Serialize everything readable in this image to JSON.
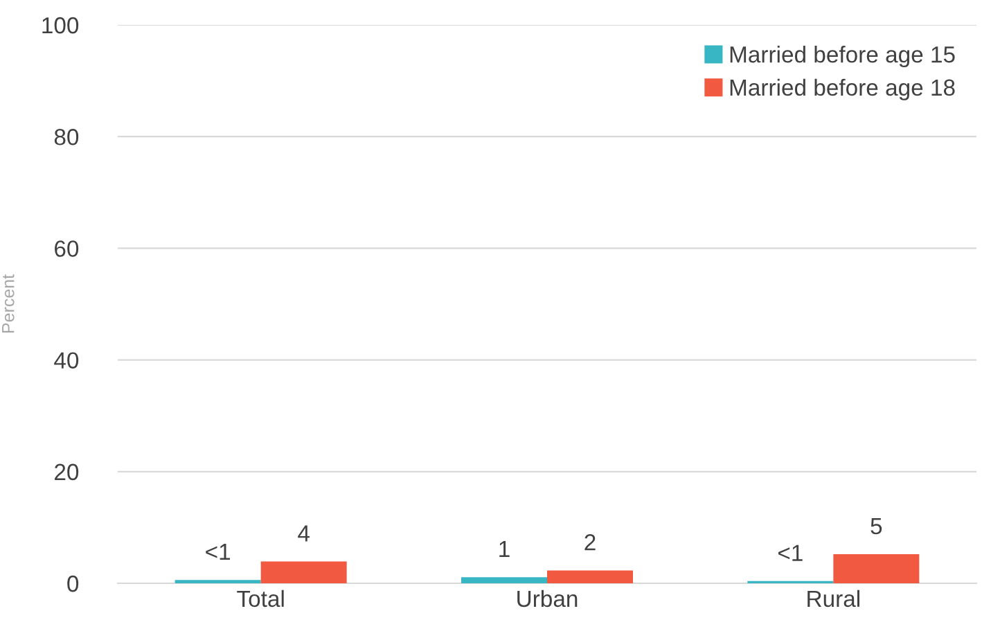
{
  "chart_data": {
    "type": "bar",
    "ylabel": "Percent",
    "categories": [
      "Total",
      "Urban",
      "Rural"
    ],
    "series": [
      {
        "name": "Married before age 15",
        "color": "#38b6c4",
        "values": [
          0.6,
          1.1,
          0.4
        ],
        "value_labels": [
          "<1",
          "1",
          "<1"
        ]
      },
      {
        "name": "Married before age 18",
        "color": "#f15a40",
        "values": [
          3.9,
          2.3,
          5.2
        ],
        "value_labels": [
          "4",
          "2",
          "5"
        ]
      }
    ],
    "ylim": [
      0,
      100
    ],
    "yticks": [
      0,
      20,
      40,
      60,
      80,
      100
    ],
    "grid": "y",
    "legend": "top right"
  }
}
